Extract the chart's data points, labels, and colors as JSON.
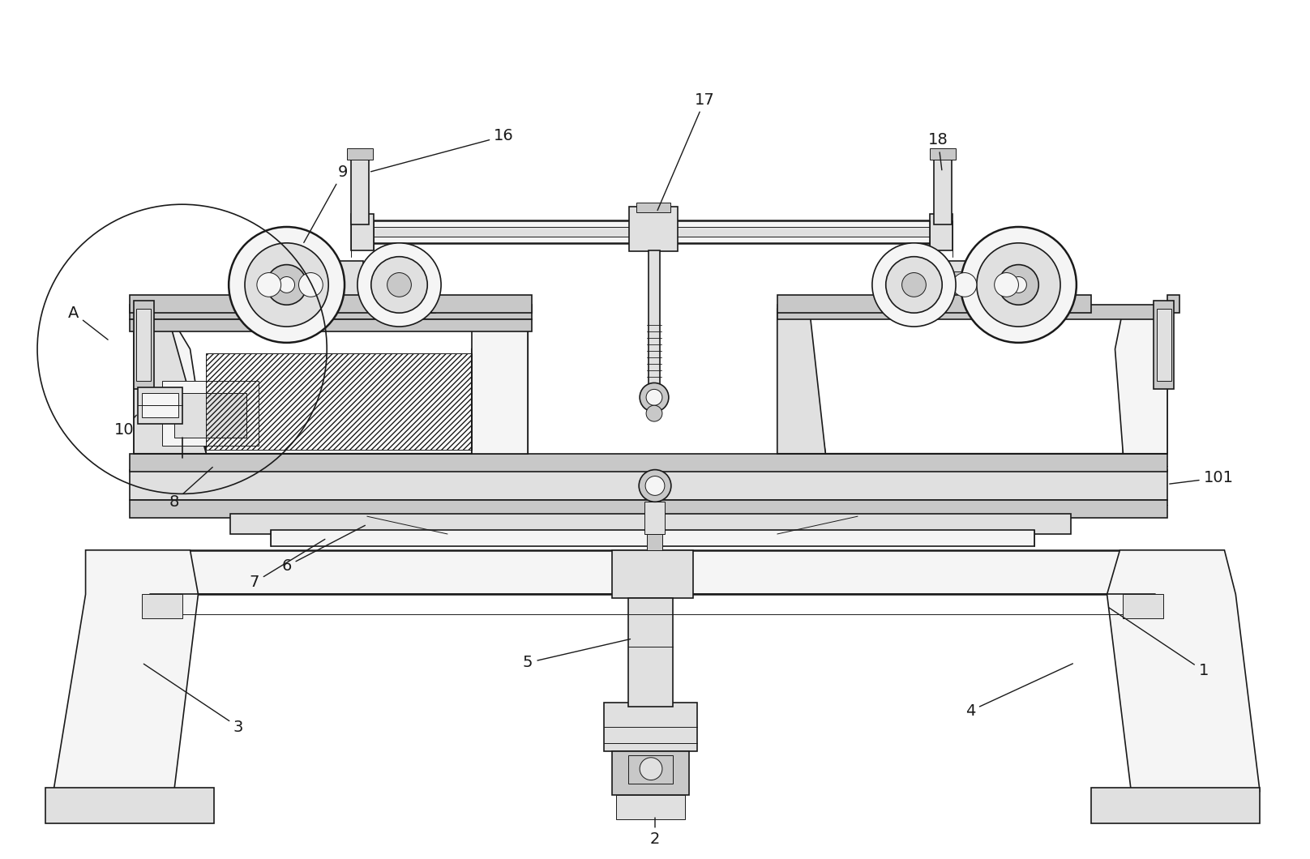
{
  "background_color": "#ffffff",
  "line_color": "#1a1a1a",
  "fig_width": 16.16,
  "fig_height": 10.6,
  "dpi": 100,
  "font_size": 14,
  "lw_thin": 0.7,
  "lw_med": 1.2,
  "lw_thick": 1.8,
  "fc_light": "#f5f5f5",
  "fc_mid": "#e0e0e0",
  "fc_dark": "#c8c8c8",
  "fc_gear": "#d8d8d8"
}
